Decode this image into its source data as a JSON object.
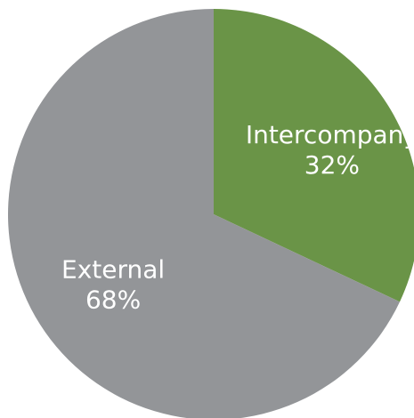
{
  "chart_data": {
    "type": "pie",
    "start_angle_deg": 0,
    "direction": "clockwise",
    "slices": [
      {
        "label": "Intercompany",
        "value": 32,
        "display": "32%",
        "color": "#6a9447"
      },
      {
        "label": "External",
        "value": 68,
        "display": "68%",
        "color": "#939598"
      }
    ],
    "legend": "none"
  }
}
